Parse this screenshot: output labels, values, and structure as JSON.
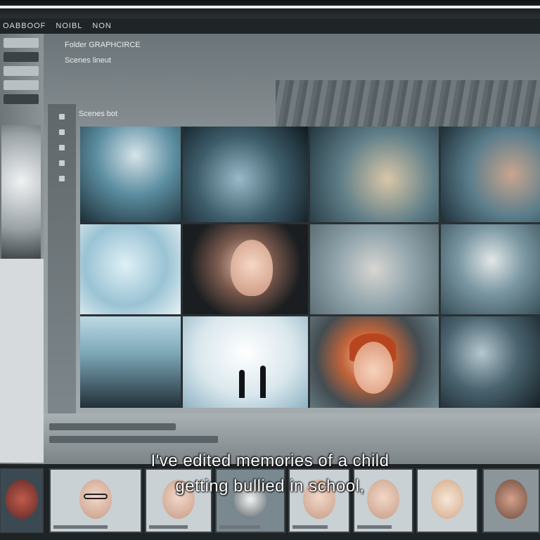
{
  "menu": {
    "items": [
      "OABBOOF",
      "NOIBL",
      "NON"
    ]
  },
  "header": {
    "rows": [
      "Folder GRAPHCIRCE",
      "Scenes lineut",
      "Scenes bot"
    ]
  },
  "subtitle": {
    "line1": "I've edited memories of a child",
    "line2": "getting bullied in school,"
  },
  "colors": {
    "chrome": "#1f2427",
    "panel": "#8f979b",
    "subtitle": "#ffffff"
  }
}
